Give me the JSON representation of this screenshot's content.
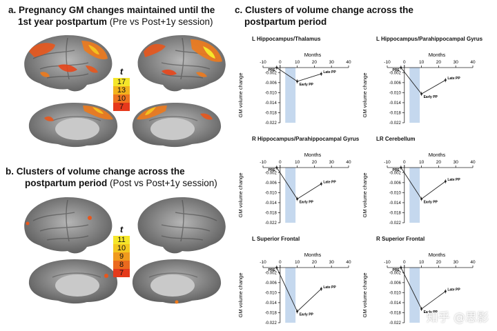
{
  "panel_a": {
    "title_bold_1": "a. Pregnancy GM changes maintained until the",
    "title_bold_2": "1st year postpartum",
    "title_normal_2": " (Pre vs Post+1y session)",
    "t_label": "t",
    "t_values": [
      "17",
      "13",
      "10",
      "7"
    ],
    "t_colors": [
      "#f5e62a",
      "#f3b21c",
      "#ee7520",
      "#e6391b"
    ]
  },
  "panel_b": {
    "title_bold_1": "b. Clusters of volume change across the",
    "title_bold_2": "postpartum period",
    "title_normal_2": " (Post vs Post+1y session)",
    "t_label": "t",
    "t_values": [
      "11",
      "10",
      "9",
      "8",
      "7"
    ],
    "t_colors": [
      "#f5e62a",
      "#f4c81f",
      "#f09a1d",
      "#eb6a1e",
      "#e53a1b"
    ]
  },
  "panel_c": {
    "title_line1": "c. Clusters of volume change across the",
    "title_line2": "postpartum period"
  },
  "chart_data": [
    {
      "type": "line",
      "title": "L Hippocampus/Thalamus",
      "xlabel": "Months",
      "ylabel": "GM volume change",
      "xlim": [
        -10,
        40
      ],
      "ylim": [
        -0.022,
        0
      ],
      "xticks": [
        "-10",
        "0",
        "10",
        "20",
        "30",
        "40"
      ],
      "yticks": [
        "-0.002",
        "-0.006",
        "-0.010",
        "-0.014",
        "-0.018",
        "-0.022"
      ],
      "points": [
        {
          "x": -2,
          "y": 0,
          "label": "PRE"
        },
        {
          "x": 10,
          "y": -0.0055,
          "label": "Early PP"
        },
        {
          "x": 24,
          "y": -0.0025,
          "label": "Late PP"
        }
      ],
      "shade": [
        3,
        9
      ]
    },
    {
      "type": "line",
      "title": "L Hippocampus/Parahippocampal Gyrus",
      "xlabel": "Months",
      "ylabel": "GM volume change",
      "xlim": [
        -10,
        40
      ],
      "ylim": [
        -0.022,
        0
      ],
      "xticks": [
        "-10",
        "0",
        "10",
        "20",
        "30",
        "40"
      ],
      "yticks": [
        "-0.002",
        "-0.006",
        "-0.010",
        "-0.014",
        "-0.018",
        "-0.022"
      ],
      "points": [
        {
          "x": -2,
          "y": 0,
          "label": "PRE"
        },
        {
          "x": 10,
          "y": -0.0105,
          "label": "Early PP"
        },
        {
          "x": 24,
          "y": -0.005,
          "label": "Late PP"
        }
      ],
      "shade": [
        3,
        9
      ]
    },
    {
      "type": "line",
      "title": "R Hippocampus/Parahippocampal Gyrus",
      "xlabel": "Months",
      "ylabel": "GM volume change",
      "xlim": [
        -10,
        40
      ],
      "ylim": [
        -0.022,
        0
      ],
      "xticks": [
        "-10",
        "0",
        "10",
        "20",
        "30",
        "40"
      ],
      "yticks": [
        "-0.002",
        "-0.006",
        "-0.010",
        "-0.014",
        "-0.018",
        "-0.022"
      ],
      "points": [
        {
          "x": -2,
          "y": 0,
          "label": "PRE"
        },
        {
          "x": 10,
          "y": -0.0125,
          "label": "Early PP"
        },
        {
          "x": 24,
          "y": -0.0065,
          "label": "Late PP"
        }
      ],
      "shade": [
        3,
        9
      ]
    },
    {
      "type": "line",
      "title": "LR Cerebellum",
      "xlabel": "Months",
      "ylabel": "GM volume change",
      "xlim": [
        -10,
        40
      ],
      "ylim": [
        -0.022,
        0
      ],
      "xticks": [
        "-10",
        "0",
        "10",
        "20",
        "30",
        "40"
      ],
      "yticks": [
        "-0.002",
        "-0.006",
        "-0.010",
        "-0.014",
        "-0.018",
        "-0.022"
      ],
      "points": [
        {
          "x": -2,
          "y": 0,
          "label": "PRE"
        },
        {
          "x": 10,
          "y": -0.0125,
          "label": "Early PP"
        },
        {
          "x": 24,
          "y": -0.0055,
          "label": "Late PP"
        }
      ],
      "shade": [
        3,
        9
      ]
    },
    {
      "type": "line",
      "title": "L Superior Frontal",
      "xlabel": "Months",
      "ylabel": "GM volume change",
      "xlim": [
        -10,
        40
      ],
      "ylim": [
        -0.022,
        0
      ],
      "xticks": [
        "-10",
        "0",
        "10",
        "20",
        "30",
        "40"
      ],
      "yticks": [
        "-0.002",
        "-0.006",
        "-0.010",
        "-0.014",
        "-0.018",
        "-0.022"
      ],
      "points": [
        {
          "x": -2,
          "y": 0,
          "label": "PRE"
        },
        {
          "x": 10,
          "y": -0.0175,
          "label": "Early PP"
        },
        {
          "x": 24,
          "y": -0.0085,
          "label": "Late PP"
        }
      ],
      "shade": [
        3,
        9
      ]
    },
    {
      "type": "line",
      "title": "R Superior Frontal",
      "xlabel": "Months",
      "ylabel": "GM volume change",
      "xlim": [
        -10,
        40
      ],
      "ylim": [
        -0.022,
        0
      ],
      "xticks": [
        "-10",
        "0",
        "10",
        "20",
        "30",
        "40"
      ],
      "yticks": [
        "-0.002",
        "-0.006",
        "-0.010",
        "-0.014",
        "-0.018",
        "-0.022"
      ],
      "points": [
        {
          "x": -2,
          "y": 0,
          "label": "PRE"
        },
        {
          "x": 10,
          "y": -0.0165,
          "label": "Early PP"
        },
        {
          "x": 24,
          "y": -0.0095,
          "label": "Late PP"
        }
      ],
      "shade": [
        3,
        9
      ]
    }
  ],
  "watermark": "知乎 @思影"
}
